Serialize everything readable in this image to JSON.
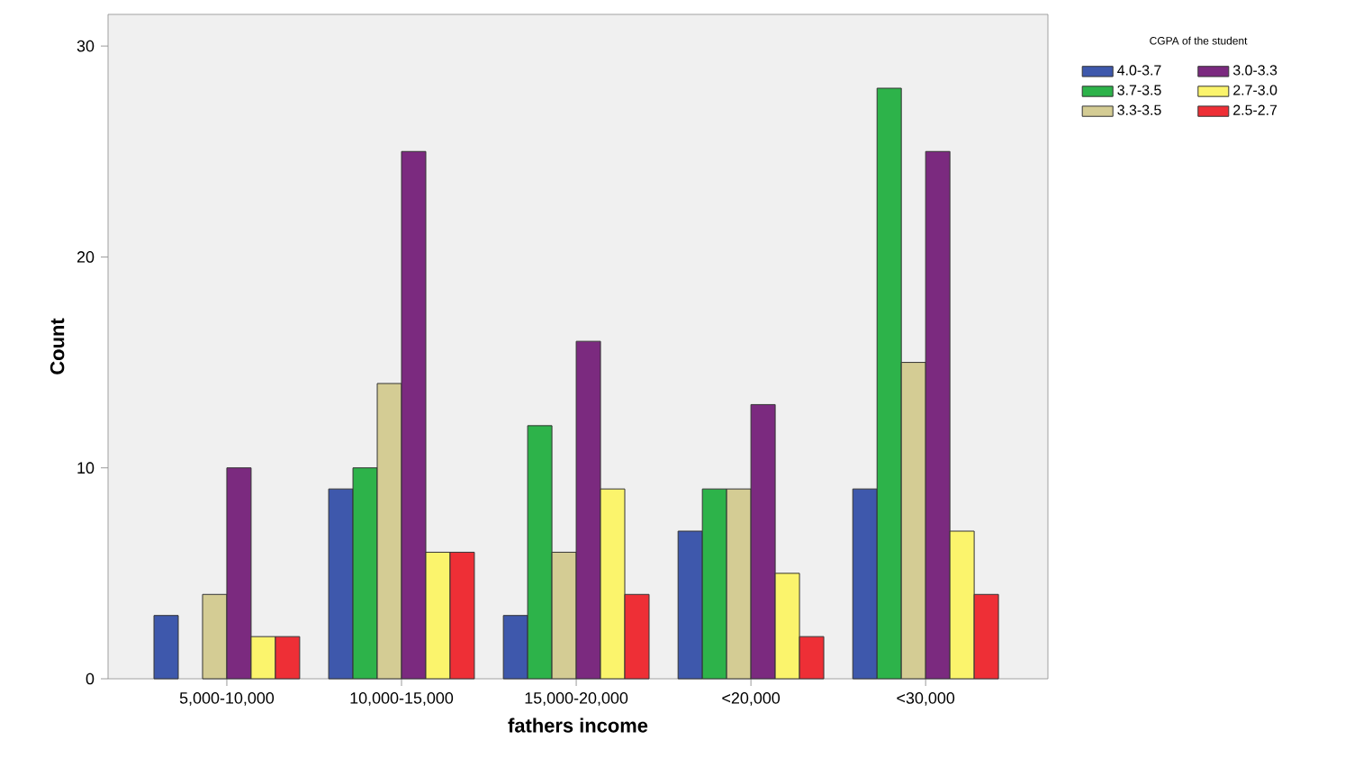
{
  "chart_data": {
    "type": "bar",
    "xlabel": "fathers income",
    "ylabel": "Count",
    "legend_title": "CGPA of the student",
    "categories": [
      "5,000-10,000",
      "10,000-15,000",
      "15,000-20,000",
      "<20,000",
      "<30,000"
    ],
    "series": [
      {
        "name": "4.0-3.7",
        "color": "#3e58ac",
        "values": [
          3,
          9,
          3,
          7,
          9
        ]
      },
      {
        "name": "3.7-3.5",
        "color": "#2db34a",
        "values": [
          null,
          10,
          12,
          9,
          28
        ]
      },
      {
        "name": "3.3-3.5",
        "color": "#d4cc94",
        "values": [
          4,
          14,
          6,
          9,
          15
        ]
      },
      {
        "name": "3.0-3.3",
        "color": "#7b2a7f",
        "values": [
          10,
          25,
          16,
          13,
          25
        ]
      },
      {
        "name": "2.7-3.0",
        "color": "#fbf46c",
        "values": [
          2,
          6,
          9,
          5,
          7
        ]
      },
      {
        "name": "2.5-2.7",
        "color": "#ee2f36",
        "values": [
          2,
          6,
          4,
          2,
          4
        ]
      }
    ],
    "ylim": [
      0,
      31.5
    ],
    "yticks": [
      0,
      10,
      20,
      30
    ],
    "grid": false,
    "legend": "top right"
  }
}
